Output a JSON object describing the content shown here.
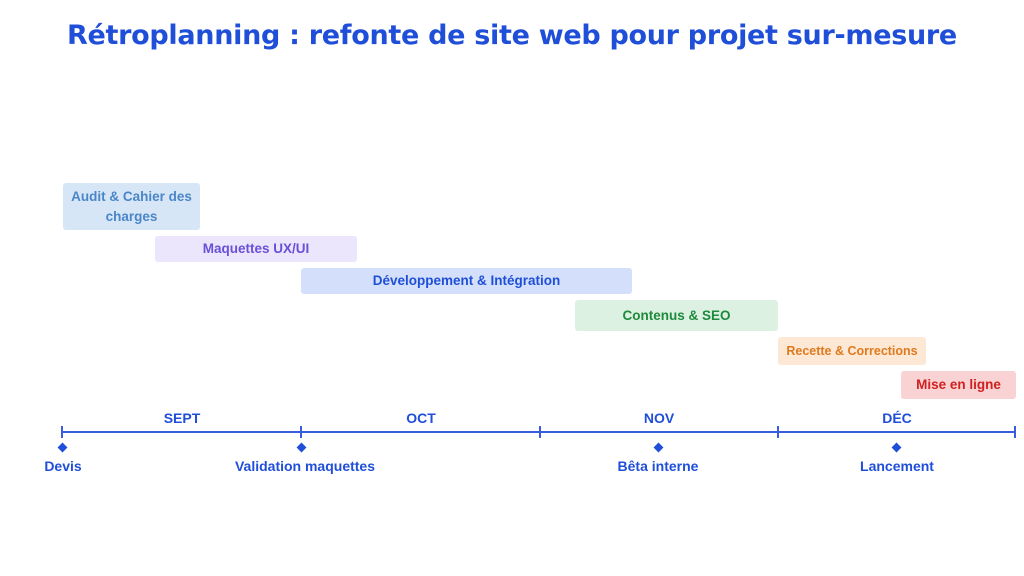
{
  "title": "Rétroplanning : refonte de site web pour projet sur-mesure",
  "tasks": [
    {
      "label": "Audit & Cahier des charges",
      "color": "#4a86c8",
      "bg": "#d6e6f6"
    },
    {
      "label": "Maquettes UX/UI",
      "color": "#6a4fd8",
      "bg": "#ebe6fb"
    },
    {
      "label": "Développement & Intégration",
      "color": "#1f4fd8",
      "bg": "#d4e0fb"
    },
    {
      "label": "Contenus & SEO",
      "color": "#1e8a3c",
      "bg": "#ddf1e2"
    },
    {
      "label": "Recette & Corrections",
      "color": "#e07a1e",
      "bg": "#fde8d5"
    },
    {
      "label": "Mise en ligne",
      "color": "#d02020",
      "bg": "#f9d3d3"
    }
  ],
  "months": [
    "SEPT",
    "OCT",
    "NOV",
    "DÉC"
  ],
  "milestones": [
    {
      "label": "Devis"
    },
    {
      "label": "Validation maquettes"
    },
    {
      "label": "Bêta interne"
    },
    {
      "label": "Lancement"
    }
  ]
}
